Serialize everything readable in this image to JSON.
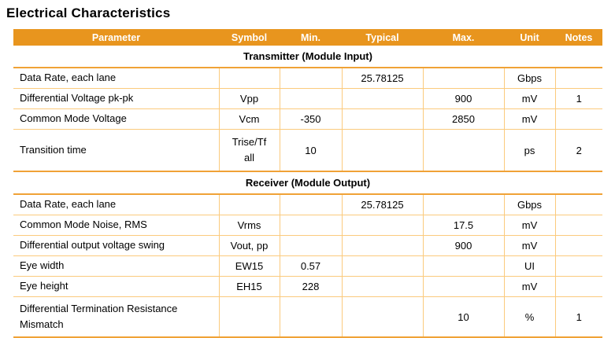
{
  "page_title": "Electrical Characteristics",
  "colors": {
    "header_bg": "#E8951E",
    "header_text": "#FFFFFF",
    "grid_line": "#FBCA7D",
    "strong_line": "#F0A236",
    "body_text": "#000000"
  },
  "table": {
    "columns": [
      "Parameter",
      "Symbol",
      "Min.",
      "Typical",
      "Max.",
      "Unit",
      "Notes"
    ],
    "sections": [
      {
        "title": "Transmitter (Module Input)",
        "rows": [
          {
            "parameter": "Data Rate, each lane",
            "symbol": "",
            "min": "",
            "typical": "25.78125",
            "max": "",
            "unit": "Gbps",
            "notes": ""
          },
          {
            "parameter": "Differential Voltage pk-pk",
            "symbol": "Vpp",
            "min": "",
            "typical": "",
            "max": "900",
            "unit": "mV",
            "notes": "1"
          },
          {
            "parameter": "Common Mode Voltage",
            "symbol": "Vcm",
            "min": "-350",
            "typical": "",
            "max": "2850",
            "unit": "mV",
            "notes": ""
          },
          {
            "parameter": "Transition time",
            "symbol": "Trise/Tf\nall",
            "min": "10",
            "typical": "",
            "max": "",
            "unit": "ps",
            "notes": "2"
          }
        ]
      },
      {
        "title": "Receiver (Module Output)",
        "rows": [
          {
            "parameter": "Data Rate, each lane",
            "symbol": "",
            "min": "",
            "typical": "25.78125",
            "max": "",
            "unit": "Gbps",
            "notes": ""
          },
          {
            "parameter": "Common Mode Noise, RMS",
            "symbol": "Vrms",
            "min": "",
            "typical": "",
            "max": "17.5",
            "unit": "mV",
            "notes": ""
          },
          {
            "parameter": "Differential output voltage swing",
            "symbol": "Vout, pp",
            "min": "",
            "typical": "",
            "max": "900",
            "unit": "mV",
            "notes": ""
          },
          {
            "parameter": "Eye width",
            "symbol": "EW15",
            "min": "0.57",
            "typical": "",
            "max": "",
            "unit": "UI",
            "notes": ""
          },
          {
            "parameter": "Eye height",
            "symbol": "EH15",
            "min": "228",
            "typical": "",
            "max": "",
            "unit": "mV",
            "notes": ""
          },
          {
            "parameter": "Differential Termination Resistance Mismatch",
            "symbol": "",
            "min": "",
            "typical": "",
            "max": "10",
            "unit": "%",
            "notes": "1"
          }
        ]
      }
    ]
  }
}
